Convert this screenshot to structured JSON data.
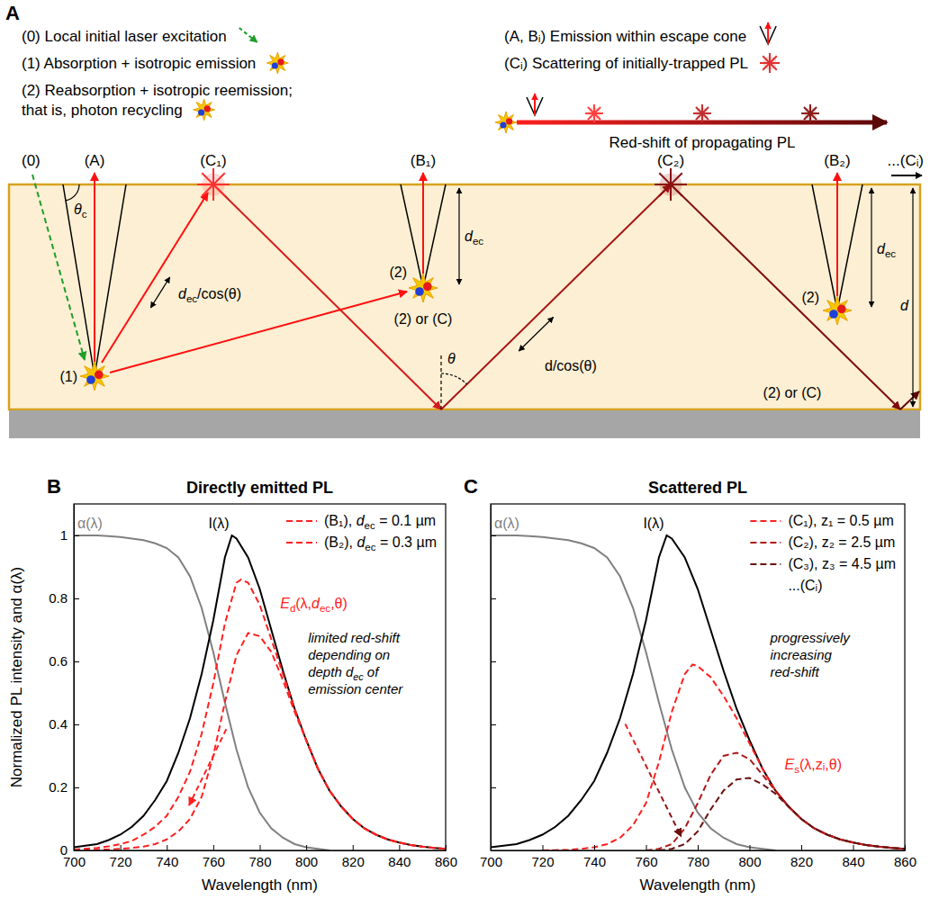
{
  "diagram": {
    "panel": "A",
    "key": [
      [
        "(0) Local initial laser excitation"
      ],
      [
        "(1) Absorption + isotropic emission"
      ],
      [
        "(2) Reabsorption + isotropic reemission;",
        "that is, photon recycling"
      ],
      [
        "(A, Bᵢ) Emission within escape cone"
      ],
      [
        "(Cᵢ) Scattering of initially-trapped PL"
      ]
    ],
    "redshift_label": "Red-shift of propagating PL",
    "events": [
      "(0)",
      "(A)",
      "(C₁)",
      "(B₁)",
      "(C₂)",
      "(B₂)",
      "...(Cᵢ)"
    ],
    "emitters": [
      "(1)",
      "(2)",
      "(2) or (C)",
      "(2)",
      "(2) or (C)"
    ],
    "critical_angle": "θc",
    "escape_path": "dec/cos(θ)",
    "escape_depth": [
      "dec",
      "dec"
    ],
    "slab_path": "d/cos(θ)",
    "angle": "θ",
    "thickness": "d"
  },
  "chart_data": [
    {
      "panel": "B",
      "type": "line",
      "title": "Directly emitted PL",
      "x_label": "Wavelength (nm)",
      "y_label": "Normalized PL intensity and α(λ)",
      "xlim": [
        700,
        860
      ],
      "xticks": [
        700,
        720,
        740,
        760,
        780,
        800,
        820,
        840,
        860
      ],
      "ylim": [
        0,
        1.1
      ],
      "yticks": [
        0,
        0.2,
        0.4,
        0.6,
        0.8,
        1
      ],
      "legend": "upper right",
      "series": [
        {
          "name": "α(λ)",
          "color": "#808080",
          "line_style": "solid",
          "x": [
            700,
            705,
            710,
            715,
            720,
            725,
            730,
            735,
            740,
            745,
            750,
            755,
            760,
            765,
            770,
            775,
            780,
            785,
            790,
            795,
            800,
            805,
            810
          ],
          "values": [
            1,
            1,
            1,
            0.998,
            0.995,
            0.99,
            0.985,
            0.975,
            0.96,
            0.93,
            0.87,
            0.77,
            0.63,
            0.47,
            0.32,
            0.2,
            0.12,
            0.07,
            0.04,
            0.02,
            0.01,
            0.005,
            0
          ]
        },
        {
          "name": "I(λ)",
          "color": "#000000",
          "line_style": "solid",
          "x": [
            700,
            705,
            710,
            715,
            720,
            725,
            730,
            735,
            740,
            745,
            750,
            755,
            760,
            765,
            768,
            770,
            775,
            780,
            785,
            790,
            795,
            800,
            805,
            810,
            815,
            820,
            825,
            830,
            835,
            840,
            845,
            850,
            855,
            860
          ],
          "values": [
            0.01,
            0.015,
            0.02,
            0.033,
            0.05,
            0.075,
            0.11,
            0.16,
            0.22,
            0.31,
            0.42,
            0.56,
            0.73,
            0.93,
            1,
            0.99,
            0.93,
            0.83,
            0.7,
            0.57,
            0.45,
            0.35,
            0.26,
            0.19,
            0.14,
            0.1,
            0.07,
            0.05,
            0.035,
            0.025,
            0.017,
            0.012,
            0.008,
            0.005
          ]
        },
        {
          "name": "(B₁), dec = 0.1 µm",
          "color": "#ff2020",
          "line_style": "dashed",
          "x": [
            700,
            705,
            710,
            715,
            720,
            725,
            730,
            735,
            740,
            745,
            750,
            755,
            760,
            765,
            770,
            772,
            775,
            780,
            785,
            790,
            795,
            800,
            805,
            810,
            815,
            820,
            825,
            830,
            835,
            840,
            845,
            850,
            855,
            860
          ],
          "values": [
            0.003,
            0.005,
            0.008,
            0.013,
            0.02,
            0.03,
            0.05,
            0.075,
            0.11,
            0.17,
            0.25,
            0.37,
            0.53,
            0.72,
            0.85,
            0.86,
            0.85,
            0.78,
            0.67,
            0.56,
            0.45,
            0.35,
            0.26,
            0.19,
            0.14,
            0.1,
            0.07,
            0.05,
            0.035,
            0.025,
            0.017,
            0.012,
            0.008,
            0.005
          ]
        },
        {
          "name": "(B₂), dec = 0.3 µm",
          "color": "#ff2020",
          "line_style": "dashed",
          "x": [
            700,
            705,
            710,
            715,
            720,
            725,
            730,
            735,
            740,
            745,
            750,
            755,
            760,
            765,
            770,
            775,
            780,
            785,
            790,
            795,
            800,
            805,
            810,
            815,
            820,
            825,
            830,
            835,
            840,
            845,
            850,
            855,
            860
          ],
          "values": [
            0.001,
            0.001,
            0.002,
            0.003,
            0.005,
            0.008,
            0.012,
            0.02,
            0.035,
            0.06,
            0.1,
            0.17,
            0.3,
            0.47,
            0.62,
            0.69,
            0.68,
            0.63,
            0.54,
            0.44,
            0.35,
            0.26,
            0.19,
            0.14,
            0.1,
            0.07,
            0.05,
            0.035,
            0.025,
            0.017,
            0.012,
            0.008,
            0.005
          ]
        }
      ],
      "curve_label": "Ed(λ,dec,θ)",
      "annotation": [
        "limited red-shift",
        "depending on",
        "depth dec of",
        "emission center"
      ]
    },
    {
      "panel": "C",
      "type": "line",
      "title": "Scattered PL",
      "x_label": "Wavelength (nm)",
      "xlim": [
        700,
        860
      ],
      "xticks": [
        700,
        720,
        740,
        760,
        780,
        800,
        820,
        840,
        860
      ],
      "ylim": [
        0,
        1.1
      ],
      "yticks": [
        0,
        0.2,
        0.4,
        0.6,
        0.8,
        1
      ],
      "tick_labels": "x",
      "legend": "upper right",
      "series": [
        {
          "name": "α(λ)",
          "color": "#808080",
          "line_style": "solid",
          "x": [
            700,
            705,
            710,
            715,
            720,
            725,
            730,
            735,
            740,
            745,
            750,
            755,
            760,
            765,
            770,
            775,
            780,
            785,
            790,
            795,
            800,
            805,
            810
          ],
          "values": [
            1,
            1,
            1,
            0.998,
            0.995,
            0.99,
            0.985,
            0.975,
            0.96,
            0.93,
            0.87,
            0.77,
            0.63,
            0.47,
            0.32,
            0.2,
            0.12,
            0.07,
            0.04,
            0.02,
            0.01,
            0.005,
            0
          ]
        },
        {
          "name": "I(λ)",
          "color": "#000000",
          "line_style": "solid",
          "x": [
            700,
            705,
            710,
            715,
            720,
            725,
            730,
            735,
            740,
            745,
            750,
            755,
            760,
            765,
            768,
            770,
            775,
            780,
            785,
            790,
            795,
            800,
            805,
            810,
            815,
            820,
            825,
            830,
            835,
            840,
            845,
            850,
            855,
            860
          ],
          "values": [
            0.01,
            0.015,
            0.02,
            0.033,
            0.05,
            0.075,
            0.11,
            0.16,
            0.22,
            0.31,
            0.42,
            0.56,
            0.73,
            0.93,
            1,
            0.99,
            0.93,
            0.83,
            0.7,
            0.57,
            0.45,
            0.35,
            0.26,
            0.19,
            0.14,
            0.1,
            0.07,
            0.05,
            0.035,
            0.025,
            0.017,
            0.012,
            0.008,
            0.005
          ]
        },
        {
          "name": "(C₁), z₁ = 0.5 µm",
          "color": "#ff2020",
          "line_style": "dashed",
          "x": [
            720,
            725,
            730,
            735,
            740,
            745,
            750,
            755,
            760,
            765,
            770,
            775,
            778,
            780,
            785,
            790,
            795,
            800,
            805,
            810,
            815,
            820,
            825,
            830,
            835,
            840,
            845,
            850,
            855,
            860
          ],
          "values": [
            0,
            0.001,
            0.002,
            0.005,
            0.01,
            0.02,
            0.04,
            0.08,
            0.15,
            0.28,
            0.44,
            0.56,
            0.59,
            0.585,
            0.55,
            0.49,
            0.42,
            0.34,
            0.26,
            0.19,
            0.14,
            0.1,
            0.07,
            0.05,
            0.035,
            0.025,
            0.017,
            0.012,
            0.008,
            0.005
          ]
        },
        {
          "name": "(C₂), z₂ = 2.5 µm",
          "color": "#b01818",
          "line_style": "dashed",
          "x": [
            760,
            765,
            770,
            775,
            780,
            785,
            790,
            795,
            800,
            805,
            810,
            815,
            820,
            825,
            830,
            835,
            840,
            845,
            850,
            855,
            860
          ],
          "values": [
            0,
            0.005,
            0.02,
            0.07,
            0.15,
            0.24,
            0.3,
            0.31,
            0.29,
            0.24,
            0.19,
            0.14,
            0.1,
            0.07,
            0.05,
            0.035,
            0.025,
            0.017,
            0.012,
            0.008,
            0.005
          ]
        },
        {
          "name": "(C₃), z₃ = 4.5 µm",
          "color": "#6a1010",
          "line_style": "dashed",
          "x": [
            765,
            770,
            775,
            780,
            785,
            790,
            795,
            800,
            805,
            810,
            815,
            820,
            825,
            830,
            835,
            840,
            845,
            850,
            855,
            860
          ],
          "values": [
            0,
            0.005,
            0.02,
            0.06,
            0.13,
            0.19,
            0.225,
            0.23,
            0.21,
            0.18,
            0.14,
            0.1,
            0.07,
            0.05,
            0.035,
            0.025,
            0.017,
            0.012,
            0.008,
            0.005
          ]
        }
      ],
      "legend_more": "...(Cᵢ)",
      "curve_label": "Es(λ,zᵢ,θ)",
      "annotation": [
        "progressively",
        "increasing",
        "red-shift"
      ]
    }
  ]
}
